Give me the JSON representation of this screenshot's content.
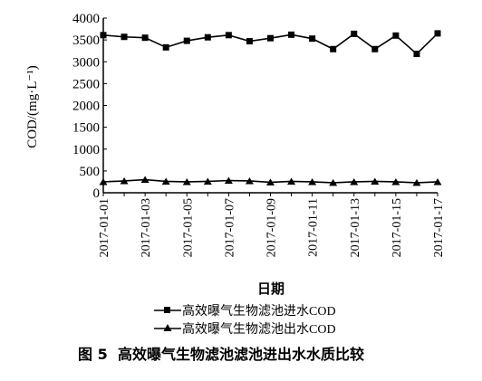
{
  "chart_data": {
    "type": "line",
    "x_axis_title": "日期",
    "y_axis_title": "COD/(mg·L⁻¹)",
    "ylim": [
      0,
      4000
    ],
    "y_ticks": [
      0,
      500,
      1000,
      1500,
      2000,
      2500,
      3000,
      3500,
      4000
    ],
    "x": [
      "2017-01-01",
      "2017-01-02",
      "2017-01-03",
      "2017-01-04",
      "2017-01-05",
      "2017-01-06",
      "2017-01-07",
      "2017-01-08",
      "2017-01-09",
      "2017-01-10",
      "2017-01-11",
      "2017-01-12",
      "2017-01-13",
      "2017-01-14",
      "2017-01-15",
      "2017-01-16",
      "2017-01-17"
    ],
    "x_tick_labels": [
      "2017-01-01",
      "2017-01-03",
      "2017-01-05",
      "2017-01-07",
      "2017-01-09",
      "2017-01-11",
      "2017-01-13",
      "2017-01-15",
      "2017-01-17"
    ],
    "series": [
      {
        "name": "高效曝气生物滤池进水COD",
        "marker": "square",
        "color": "#000000",
        "values": [
          3610,
          3570,
          3550,
          3330,
          3480,
          3560,
          3610,
          3470,
          3540,
          3620,
          3530,
          3290,
          3640,
          3290,
          3600,
          3180,
          3650
        ]
      },
      {
        "name": "高效曝气生物滤池出水COD",
        "marker": "triangle",
        "color": "#000000",
        "values": [
          250,
          270,
          300,
          260,
          250,
          260,
          280,
          270,
          240,
          260,
          250,
          230,
          250,
          260,
          250,
          230,
          250
        ]
      }
    ],
    "grid": false,
    "legend_position": "bottom"
  },
  "caption": {
    "number": "图 5",
    "text": "高效曝气生物滤池滤池进出水水质比较"
  }
}
